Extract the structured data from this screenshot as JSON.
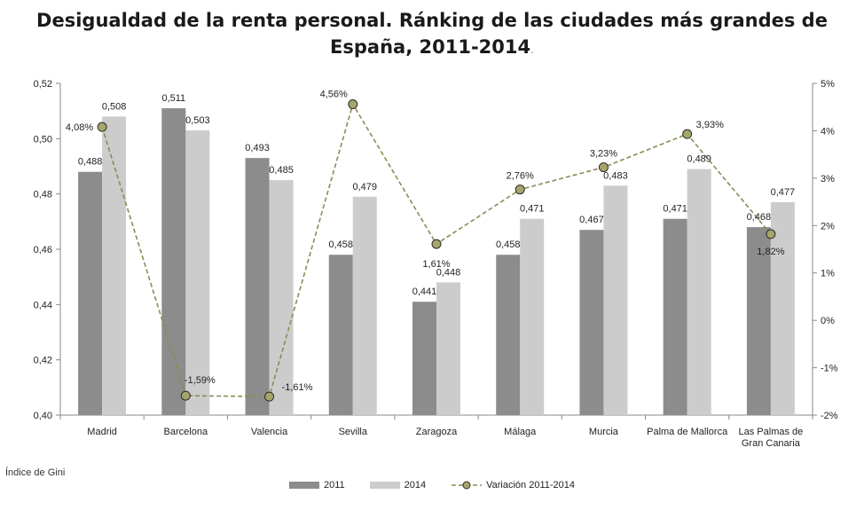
{
  "title": {
    "line1": "Desigualdad de la renta personal. Ránking de las ciudades más grandes de",
    "line2": "España, 2011-2014",
    "trail": "."
  },
  "note": "Índice de Gini",
  "colors": {
    "s2011": "#8c8c8c",
    "s2014": "#cccccc",
    "line": "#8d8a56",
    "marker": "#a6a56a"
  },
  "chart_data": {
    "type": "bar",
    "categories": [
      [
        "Madrid"
      ],
      [
        "Barcelona"
      ],
      [
        "Valencia"
      ],
      [
        "Sevilla"
      ],
      [
        "Zaragoza"
      ],
      [
        "Málaga"
      ],
      [
        "Murcia"
      ],
      [
        "Palma de Mallorca"
      ],
      [
        "Las Palmas de",
        "Gran Canaria"
      ]
    ],
    "series": [
      {
        "name": "2011",
        "type": "bar",
        "axis": "left",
        "values": [
          0.488,
          0.511,
          0.493,
          0.458,
          0.441,
          0.458,
          0.467,
          0.471,
          0.468
        ],
        "labels": [
          "0,488",
          "0,511",
          "0,493",
          "0,458",
          "0,441",
          "0,458",
          "0,467",
          "0,471",
          "0,468"
        ]
      },
      {
        "name": "2014",
        "type": "bar",
        "axis": "left",
        "values": [
          0.508,
          0.503,
          0.485,
          0.479,
          0.448,
          0.471,
          0.483,
          0.489,
          0.477
        ],
        "labels": [
          "0,508",
          "0,503",
          "0,485",
          "0,479",
          "0,448",
          "0,471",
          "0,483",
          "0,489",
          "0,477"
        ]
      },
      {
        "name": "Variación 2011-2014",
        "type": "line",
        "axis": "right",
        "values": [
          4.08,
          -1.59,
          -1.61,
          4.56,
          1.61,
          2.76,
          3.23,
          3.93,
          1.82
        ],
        "labels": [
          "4,08%",
          "-1,59%",
          "-1,61%",
          "4,56%",
          "1,61%",
          "2,76%",
          "3,23%",
          "3,93%",
          "1,82%"
        ]
      }
    ],
    "y_left": {
      "ylim": [
        0.4,
        0.52
      ],
      "ticks": [
        0.4,
        0.42,
        0.44,
        0.46,
        0.48,
        0.5,
        0.52
      ],
      "tick_labels": [
        "0,40",
        "0,42",
        "0,44",
        "0,46",
        "0,48",
        "0,50",
        "0,52"
      ]
    },
    "y_right": {
      "ylim": [
        -2,
        5
      ],
      "ticks": [
        -2,
        -1,
        0,
        1,
        2,
        3,
        4,
        5
      ],
      "tick_labels": [
        "-2%",
        "-1%",
        "0%",
        "1%",
        "2%",
        "3%",
        "4%",
        "5%"
      ]
    },
    "grid": false,
    "legend_position": "bottom"
  }
}
